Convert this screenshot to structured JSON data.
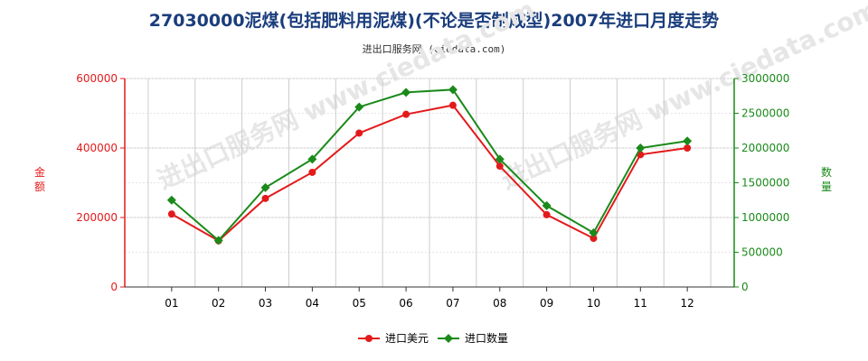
{
  "title": "27030000泥煤(包括肥料用泥煤)(不论是否制成型)2007年进口月度走势",
  "subtitle": "进出口服务网 (ciedata.com)",
  "watermark": "进出口服务网 www.ciedata.com",
  "colors": {
    "series_value": "#e31a1c",
    "series_quantity": "#1a8a1a",
    "title": "#1a3d7c",
    "grid": "#cccccc"
  },
  "chart_data": {
    "type": "line",
    "categories": [
      "01",
      "02",
      "03",
      "04",
      "05",
      "06",
      "07",
      "08",
      "09",
      "10",
      "11",
      "12"
    ],
    "left_axis": {
      "label": "金额",
      "range": [
        0,
        600000
      ],
      "ticks": [
        "0",
        "200000",
        "400000",
        "600000"
      ],
      "tick_values": [
        0,
        200000,
        400000,
        600000
      ]
    },
    "right_axis": {
      "label": "数量",
      "range": [
        0,
        3000000
      ],
      "ticks": [
        "0",
        "500000",
        "1000000",
        "1500000",
        "2000000",
        "2500000",
        "3000000"
      ],
      "tick_values": [
        0,
        500000,
        1000000,
        1500000,
        2000000,
        2500000,
        3000000
      ]
    },
    "series": [
      {
        "name": "进口美元",
        "axis": "left",
        "values": [
          210000,
          133000,
          255000,
          330000,
          443000,
          497000,
          523000,
          348000,
          208000,
          140000,
          381000,
          400000
        ]
      },
      {
        "name": "进口数量",
        "axis": "right",
        "values": [
          1250000,
          670000,
          1430000,
          1840000,
          2590000,
          2800000,
          2840000,
          1840000,
          1170000,
          780000,
          2000000,
          2100000
        ]
      }
    ],
    "grid": true,
    "legend_position": "bottom"
  }
}
